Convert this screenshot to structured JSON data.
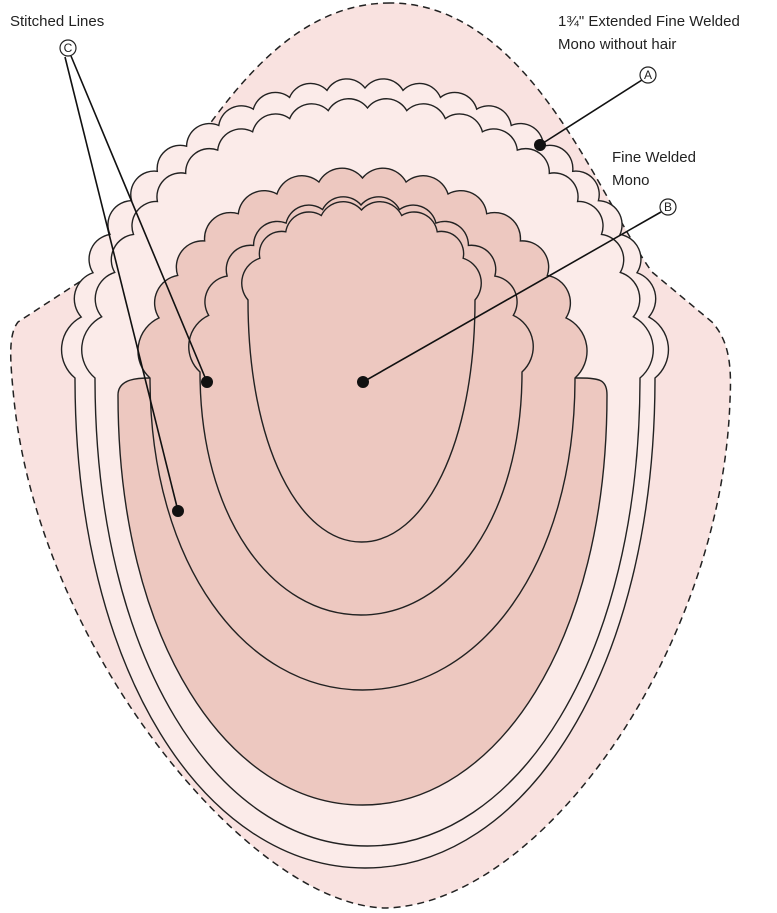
{
  "labels": [
    {
      "lines": [
        "Stitched Lines"
      ],
      "marker": "C"
    },
    {
      "lines": [
        "1¾\" Extended Fine Welded",
        "Mono without hair"
      ],
      "marker": "A"
    },
    {
      "lines": [
        "Fine Welded",
        "Mono"
      ],
      "marker": "B"
    }
  ]
}
